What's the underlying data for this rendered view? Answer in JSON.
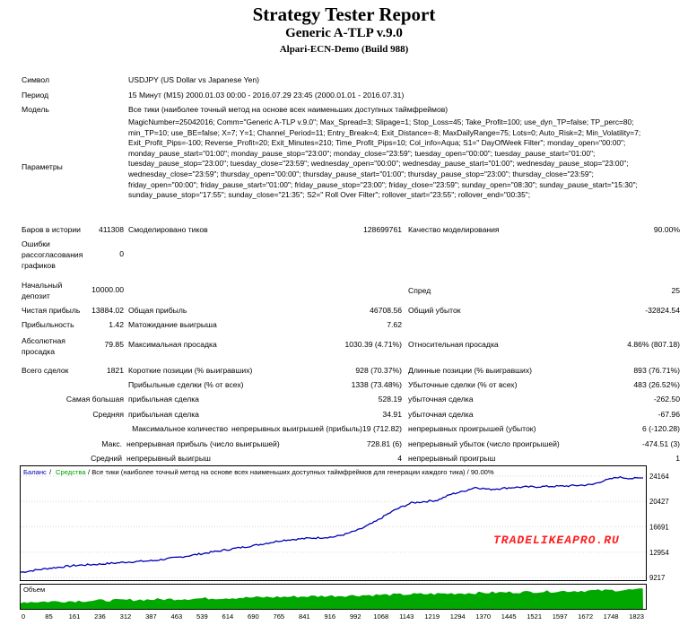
{
  "header": {
    "title": "Strategy Tester Report",
    "subtitle": "Generic A-TLP v.9.0",
    "server": "Alpari-ECN-Demo (Build 988)"
  },
  "info": {
    "symbol_label": "Символ",
    "symbol_value": "USDJPY (US Dollar vs Japanese Yen)",
    "period_label": "Период",
    "period_value": "15 Минут (M15) 2000.01.03 00:00 - 2016.07.29 23:45 (2000.01.01 - 2016.07.31)",
    "model_label": "Модель",
    "model_value": "Все тики (наиболее точный метод на основе всех наименьших доступных таймфреймов)",
    "params_label": "Параметры",
    "params_value": "MagicNumber=25042016; Comm=\"Generic A-TLP v.9.0\"; Max_Spread=3; Slipage=1; Stop_Loss=45; Take_Profit=100; use_dyn_TP=false; TP_perc=80; min_TP=10; use_BE=false; X=7; Y=1; Channel_Period=11; Entry_Break=4; Exit_Distance=-8; MaxDailyRange=75; Lots=0; Auto_Risk=2; Min_Volatility=7; Exit_Profit_Pips=-100; Reverse_Profit=20; Exit_Minutes=210; Time_Profit_Pips=10; Col_info=Aqua; S1=\" DayOfWeek Filter\"; monday_open=\"00:00\"; monday_pause_start=\"01:00\"; monday_pause_stop=\"23:00\"; monday_close=\"23:59\"; tuesday_open=\"00:00\"; tuesday_pause_start=\"01:00\"; tuesday_pause_stop=\"23:00\"; tuesday_close=\"23:59\"; wednesday_open=\"00:00\"; wednesday_pause_start=\"01:00\"; wednesday_pause_stop=\"23:00\"; wednesday_close=\"23:59\"; thursday_open=\"00:00\"; thursday_pause_start=\"01:00\"; thursday_pause_stop=\"23:00\"; thursday_close=\"23:59\"; friday_open=\"00:00\"; friday_pause_start=\"01:00\"; friday_pause_stop=\"23:00\"; friday_close=\"23:59\"; sunday_open=\"08:30\"; sunday_pause_start=\"15:30\"; sunday_pause_stop=\"17:55\"; sunday_close=\"21:35\"; S2=\" Roll Over Filter\"; rollover_start=\"23:55\"; rollover_end=\"00:35\";"
  },
  "stats": {
    "bars_label": "Баров в истории",
    "bars_value": "411308",
    "ticks_label": "Смоделировано тиков",
    "ticks_value": "128699761",
    "quality_label": "Качество моделирования",
    "quality_value": "90.00%",
    "errors_label": "Ошибки рассогласования графиков",
    "errors_value": "0",
    "deposit_label": "Начальный депозит",
    "deposit_value": "10000.00",
    "spread_label": "Спред",
    "spread_value": "25",
    "net_label": "Чистая прибыль",
    "net_value": "13884.02",
    "gross_profit_label": "Общая прибыль",
    "gross_profit_value": "46708.56",
    "gross_loss_label": "Общий убыток",
    "gross_loss_value": "-32824.54",
    "pf_label": "Прибыльность",
    "pf_value": "1.42",
    "expected_label": "Матожидание выигрыша",
    "expected_value": "7.62",
    "abs_dd_label": "Абсолютная просадка",
    "abs_dd_value": "79.85",
    "max_dd_label": "Максимальная просадка",
    "max_dd_value": "1030.39 (4.71%)",
    "rel_dd_label": "Относительная просадка",
    "rel_dd_value": "4.86% (807.18)",
    "trades_label": "Всего сделок",
    "trades_value": "1821",
    "short_label": "Короткие позиции (% выигравших)",
    "short_value": "928 (70.37%)",
    "long_label": "Длинные позиции (% выигравших)",
    "long_value": "893 (76.71%)",
    "profit_trades_label": "Прибыльные сделки (% от всех)",
    "profit_trades_value": "1338 (73.48%)",
    "loss_trades_label": "Убыточные сделки (% от всех)",
    "loss_trades_value": "483 (26.52%)",
    "largest_label": "Самая большая",
    "largest_profit_label": "прибыльная сделка",
    "largest_profit_value": "528.19",
    "largest_loss_label": "убыточная сделка",
    "largest_loss_value": "-262.50",
    "average_label": "Средняя",
    "average_profit_label": "прибыльная сделка",
    "average_profit_value": "34.91",
    "average_loss_label": "убыточная сделка",
    "average_loss_value": "-67.96",
    "max_count_label": "Максимальное количество",
    "max_cons_wins_label": "непрерывных выигрышей (прибыль)",
    "max_cons_wins_value": "19 (712.82)",
    "max_cons_losses_label": "непрерывных проигрышей (убыток)",
    "max_cons_losses_value": "6 (-120.28)",
    "max_label": "Макс.",
    "max_cons_profit_label": "непрерывная прибыль (число выигрышей)",
    "max_cons_profit_value": "728.81 (6)",
    "max_cons_loss_label": "непрерывный убыток (число проигрышей)",
    "max_cons_loss_value": "-474.51 (3)",
    "avg_label": "Средний",
    "avg_cons_wins_label": "непрерывный выигрыш",
    "avg_cons_wins_value": "4",
    "avg_cons_losses_label": "непрерывный проигрыш",
    "avg_cons_losses_value": "1"
  },
  "chart_data": {
    "type": "line",
    "legend": {
      "balance": "Баланс",
      "sep": " / ",
      "equity": "Средства",
      "rest": " / Все тики (наиболее точный метод на основе всех наименьших доступных таймфреймов для генерации каждого тика) / 90.00%"
    },
    "watermark": "TRADELIKEAPRO.RU",
    "volume_label": "Объем",
    "y_ticks": [
      "24164",
      "20427",
      "16691",
      "12954",
      "9217"
    ],
    "y_tick_values": [
      24164,
      20427,
      16691,
      12954,
      9217
    ],
    "x_ticks": [
      "0",
      "85",
      "161",
      "236",
      "312",
      "387",
      "463",
      "539",
      "614",
      "690",
      "765",
      "841",
      "916",
      "992",
      "1068",
      "1143",
      "1219",
      "1294",
      "1370",
      "1445",
      "1521",
      "1597",
      "1672",
      "1748",
      "1823"
    ],
    "x_range": [
      0,
      1821
    ],
    "y_range": [
      8700,
      25600
    ],
    "balance_points": [
      [
        0,
        10000
      ],
      [
        85,
        10600
      ],
      [
        161,
        11000
      ],
      [
        236,
        11200
      ],
      [
        312,
        11500
      ],
      [
        387,
        11700
      ],
      [
        463,
        12200
      ],
      [
        539,
        12800
      ],
      [
        614,
        13400
      ],
      [
        690,
        14000
      ],
      [
        765,
        14700
      ],
      [
        841,
        15000
      ],
      [
        916,
        15200
      ],
      [
        950,
        15600
      ],
      [
        992,
        16300
      ],
      [
        1040,
        17500
      ],
      [
        1068,
        18400
      ],
      [
        1100,
        19300
      ],
      [
        1143,
        20200
      ],
      [
        1219,
        20600
      ],
      [
        1260,
        21500
      ],
      [
        1294,
        21900
      ],
      [
        1330,
        22500
      ],
      [
        1370,
        22200
      ],
      [
        1445,
        22500
      ],
      [
        1521,
        22600
      ],
      [
        1597,
        22700
      ],
      [
        1672,
        22900
      ],
      [
        1700,
        23400
      ],
      [
        1748,
        24000
      ],
      [
        1790,
        23800
      ],
      [
        1821,
        23884
      ]
    ],
    "colors": {
      "balance": "#0000b4",
      "equity": "#00b000",
      "volume": "#00a800",
      "watermark": "#ff1e1e",
      "axis_bg": "#e8e8e8"
    }
  }
}
